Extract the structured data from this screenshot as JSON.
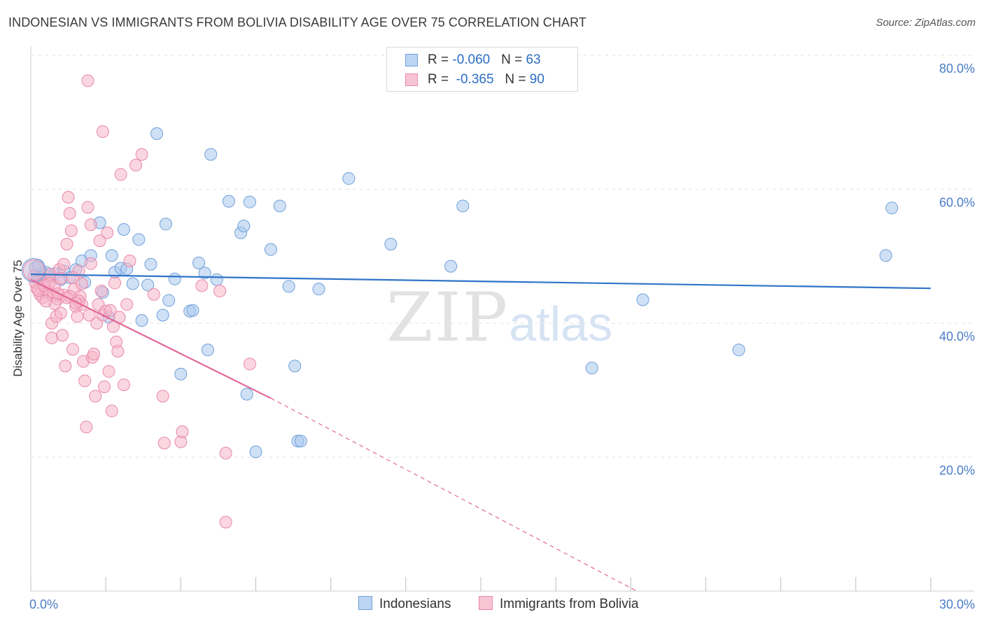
{
  "title": "INDONESIAN VS IMMIGRANTS FROM BOLIVIA DISABILITY AGE OVER 75 CORRELATION CHART",
  "source": "Source: ZipAtlas.com",
  "watermark": {
    "zip": "ZIP",
    "atlas": "atlas"
  },
  "colors": {
    "blue_fill": "#a9c8ee",
    "blue_stroke": "#6f9fd8",
    "blue_line": "#2f74c8",
    "pink_fill": "#f5b4c8",
    "pink_stroke": "#e888a8",
    "pink_line": "#e2689a",
    "axis_text": "#4a7cc7",
    "grid": "#e3e3e3"
  },
  "legend": [
    {
      "r_label": "R = ",
      "r_value": "-0.060",
      "n_label": "N = ",
      "n_value": "63"
    },
    {
      "r_label": "R = ",
      "r_value": "-0.365",
      "n_label": "N = ",
      "n_value": "90"
    }
  ],
  "bottom_legend": [
    "Indonesians",
    "Immigrants from Bolivia"
  ],
  "chart_data": {
    "type": "scatter",
    "title": "INDONESIAN VS IMMIGRANTS FROM BOLIVIA DISABILITY AGE OVER 75 CORRELATION CHART",
    "xlabel": "",
    "ylabel": "Disability Age Over 75",
    "xlim": [
      0,
      30
    ],
    "ylim": [
      0,
      80
    ],
    "x_tick_labels": [
      {
        "value": 0,
        "label": "0.0%"
      },
      {
        "value": 30,
        "label": "30.0%"
      }
    ],
    "y_tick_labels": [
      {
        "value": 20,
        "label": "20.0%"
      },
      {
        "value": 40,
        "label": "40.0%"
      },
      {
        "value": 60,
        "label": "60.0%"
      },
      {
        "value": 80,
        "label": "80.0%"
      }
    ],
    "series": [
      {
        "name": "Indonesians",
        "trend": {
          "x": [
            0,
            30
          ],
          "y": [
            47.3,
            45.2
          ]
        },
        "points": [
          [
            0.2,
            47.2
          ],
          [
            0.4,
            47.5
          ],
          [
            0.6,
            47.0
          ],
          [
            0.8,
            47.4
          ],
          [
            1.0,
            46.5
          ],
          [
            1.1,
            47.8
          ],
          [
            1.3,
            46.8
          ],
          [
            1.5,
            48.0
          ],
          [
            0.3,
            46.8
          ],
          [
            0.5,
            47.6
          ],
          [
            1.8,
            46.1
          ],
          [
            1.7,
            49.3
          ],
          [
            2.0,
            50.1
          ],
          [
            2.3,
            55.0
          ],
          [
            2.4,
            44.6
          ],
          [
            2.6,
            40.9
          ],
          [
            2.7,
            50.1
          ],
          [
            2.8,
            47.6
          ],
          [
            3.0,
            48.2
          ],
          [
            3.1,
            54.0
          ],
          [
            3.2,
            48.1
          ],
          [
            3.4,
            45.9
          ],
          [
            3.6,
            52.5
          ],
          [
            3.7,
            40.4
          ],
          [
            3.9,
            45.7
          ],
          [
            4.0,
            48.8
          ],
          [
            4.2,
            68.3
          ],
          [
            4.4,
            41.2
          ],
          [
            4.5,
            54.8
          ],
          [
            4.6,
            43.4
          ],
          [
            4.8,
            46.6
          ],
          [
            5.0,
            32.4
          ],
          [
            5.3,
            41.8
          ],
          [
            5.4,
            41.9
          ],
          [
            5.6,
            49.0
          ],
          [
            5.8,
            47.5
          ],
          [
            5.9,
            36.0
          ],
          [
            6.0,
            65.2
          ],
          [
            6.2,
            46.5
          ],
          [
            6.6,
            58.2
          ],
          [
            7.0,
            53.5
          ],
          [
            7.1,
            54.5
          ],
          [
            7.2,
            29.4
          ],
          [
            7.3,
            58.1
          ],
          [
            7.5,
            20.8
          ],
          [
            8.0,
            51.0
          ],
          [
            8.3,
            57.5
          ],
          [
            8.6,
            45.5
          ],
          [
            8.8,
            33.6
          ],
          [
            8.9,
            22.4
          ],
          [
            9.0,
            22.4
          ],
          [
            9.6,
            45.1
          ],
          [
            10.6,
            61.6
          ],
          [
            12.0,
            51.8
          ],
          [
            14.0,
            48.5
          ],
          [
            14.4,
            57.5
          ],
          [
            18.7,
            33.3
          ],
          [
            20.4,
            43.5
          ],
          [
            23.6,
            36.0
          ],
          [
            28.5,
            50.1
          ],
          [
            28.7,
            57.2
          ],
          [
            0.15,
            48.3
          ],
          [
            0.25,
            48.6
          ]
        ]
      },
      {
        "name": "Immigrants from Bolivia",
        "trend": {
          "x": [
            0,
            8.0
          ],
          "y": [
            46.5,
            28.8
          ]
        },
        "trend_dashed": {
          "x": [
            8.0,
            20.2
          ],
          "y": [
            28.8,
            0
          ]
        },
        "points": [
          [
            0.1,
            47.0
          ],
          [
            0.2,
            45.2
          ],
          [
            0.3,
            44.3
          ],
          [
            0.35,
            46.4
          ],
          [
            0.4,
            43.8
          ],
          [
            0.5,
            45.0
          ],
          [
            0.55,
            46.5
          ],
          [
            0.6,
            44.6
          ],
          [
            0.65,
            47.3
          ],
          [
            0.7,
            40.0
          ],
          [
            0.7,
            37.8
          ],
          [
            0.75,
            44.1
          ],
          [
            0.8,
            45.6
          ],
          [
            0.85,
            41.0
          ],
          [
            0.9,
            43.6
          ],
          [
            0.95,
            48.0
          ],
          [
            1.0,
            41.5
          ],
          [
            1.05,
            38.2
          ],
          [
            1.1,
            44.2
          ],
          [
            1.15,
            33.6
          ],
          [
            1.2,
            51.8
          ],
          [
            1.25,
            58.8
          ],
          [
            1.3,
            56.4
          ],
          [
            1.35,
            53.8
          ],
          [
            1.4,
            36.1
          ],
          [
            1.45,
            45.1
          ],
          [
            1.5,
            42.5
          ],
          [
            1.55,
            41.0
          ],
          [
            1.6,
            47.8
          ],
          [
            1.65,
            44.0
          ],
          [
            1.7,
            42.8
          ],
          [
            1.75,
            34.3
          ],
          [
            1.8,
            31.4
          ],
          [
            1.85,
            24.5
          ],
          [
            1.9,
            57.3
          ],
          [
            1.95,
            41.2
          ],
          [
            2.0,
            54.7
          ],
          [
            2.05,
            34.9
          ],
          [
            2.1,
            35.4
          ],
          [
            2.15,
            29.1
          ],
          [
            2.2,
            40.0
          ],
          [
            2.25,
            42.8
          ],
          [
            2.3,
            52.3
          ],
          [
            2.35,
            44.8
          ],
          [
            2.4,
            41.2
          ],
          [
            2.45,
            30.5
          ],
          [
            2.5,
            41.8
          ],
          [
            2.55,
            53.5
          ],
          [
            2.6,
            32.8
          ],
          [
            2.65,
            41.9
          ],
          [
            2.7,
            26.9
          ],
          [
            2.75,
            39.5
          ],
          [
            2.8,
            46.0
          ],
          [
            2.85,
            37.2
          ],
          [
            2.9,
            35.8
          ],
          [
            2.95,
            40.9
          ],
          [
            3.0,
            62.2
          ],
          [
            3.1,
            30.8
          ],
          [
            3.2,
            42.8
          ],
          [
            3.3,
            49.3
          ],
          [
            3.5,
            63.6
          ],
          [
            3.7,
            65.2
          ],
          [
            4.1,
            44.3
          ],
          [
            4.4,
            29.1
          ],
          [
            4.45,
            22.1
          ],
          [
            5.0,
            22.3
          ],
          [
            5.05,
            23.8
          ],
          [
            5.7,
            45.6
          ],
          [
            6.3,
            44.8
          ],
          [
            6.5,
            20.6
          ],
          [
            6.5,
            10.3
          ],
          [
            7.3,
            33.9
          ],
          [
            1.9,
            76.2
          ],
          [
            2.4,
            68.6
          ],
          [
            0.15,
            46.1
          ],
          [
            0.25,
            44.9
          ],
          [
            0.45,
            45.6
          ],
          [
            1.0,
            46.7
          ],
          [
            1.1,
            48.8
          ],
          [
            0.6,
            45.9
          ],
          [
            0.9,
            44.4
          ],
          [
            1.3,
            44.0
          ],
          [
            1.4,
            46.8
          ],
          [
            1.6,
            43.3
          ],
          [
            0.8,
            42.9
          ],
          [
            1.2,
            43.8
          ],
          [
            0.5,
            43.3
          ],
          [
            2.0,
            48.9
          ],
          [
            1.7,
            45.9
          ],
          [
            1.5,
            43.0
          ]
        ]
      }
    ]
  }
}
